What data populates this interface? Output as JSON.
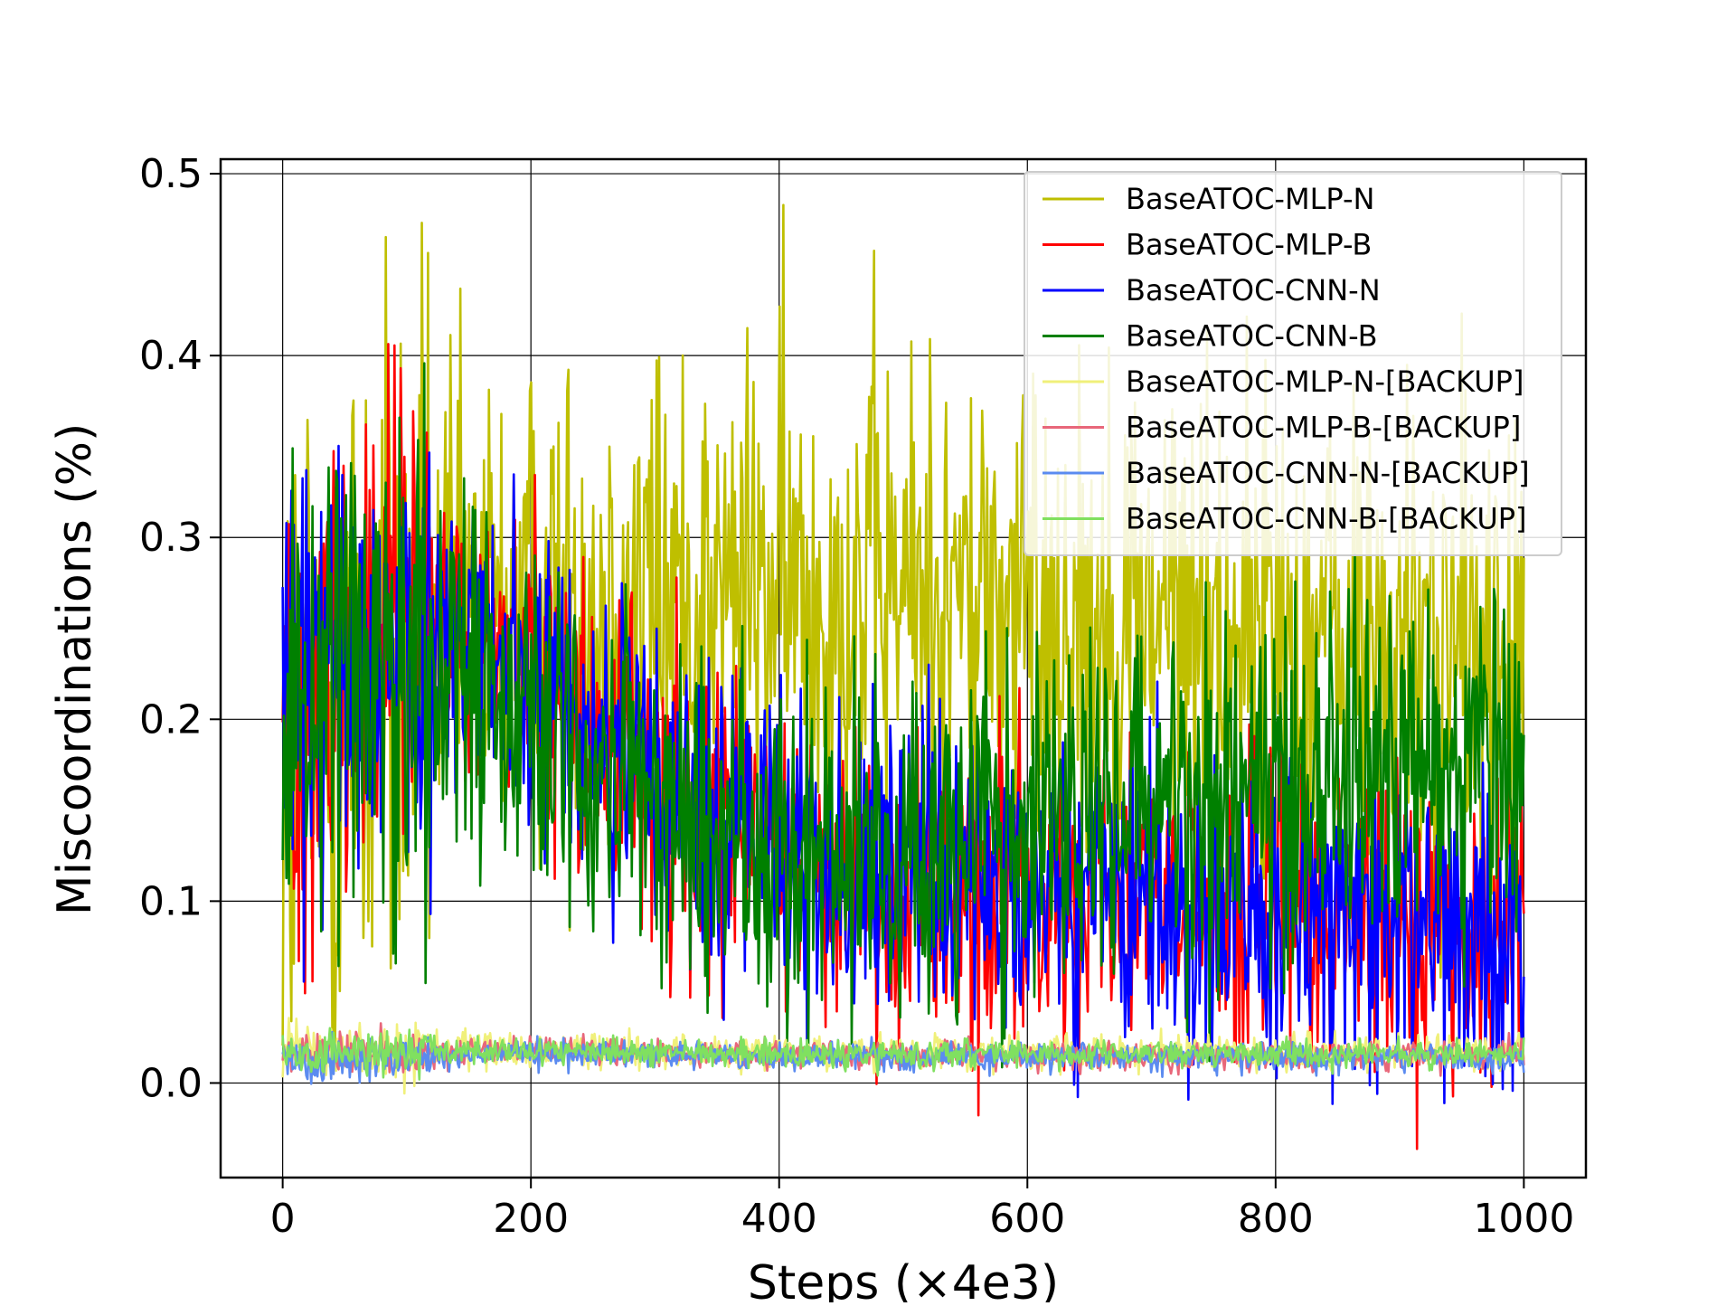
{
  "chart_data": {
    "type": "line",
    "title": "",
    "xlabel": "Steps (×4e3)",
    "ylabel": "Miscoordinations (%)",
    "xlim": [
      -50,
      1050
    ],
    "ylim": [
      -0.052,
      0.508
    ],
    "x_ticks": [
      0,
      200,
      400,
      600,
      800,
      1000
    ],
    "x_tick_labels": [
      "0",
      "200",
      "400",
      "600",
      "800",
      "1000"
    ],
    "y_ticks": [
      0.0,
      0.1,
      0.2,
      0.3,
      0.4,
      0.5
    ],
    "y_tick_labels": [
      "0.0",
      "0.1",
      "0.2",
      "0.3",
      "0.4",
      "0.5"
    ],
    "grid": true,
    "legend_position": "top-right",
    "x_range": [
      0,
      1000
    ],
    "series_note_points": 1000,
    "series": [
      {
        "name": "BaseATOC-MLP-N",
        "color": "#bfbf00",
        "anchors_x": [
          0,
          100,
          200,
          300,
          400,
          500,
          600,
          700,
          800,
          900,
          1000
        ],
        "anchors_y": [
          0.17,
          0.24,
          0.26,
          0.27,
          0.27,
          0.27,
          0.26,
          0.26,
          0.25,
          0.24,
          0.23
        ],
        "noise": 0.07
      },
      {
        "name": "BaseATOC-MLP-B",
        "color": "#ff0000",
        "anchors_x": [
          0,
          100,
          200,
          300,
          400,
          500,
          600,
          700,
          800,
          900,
          1000
        ],
        "anchors_y": [
          0.21,
          0.25,
          0.23,
          0.16,
          0.13,
          0.11,
          0.1,
          0.1,
          0.095,
          0.09,
          0.09
        ],
        "noise": 0.045
      },
      {
        "name": "BaseATOC-CNN-N",
        "color": "#0000ff",
        "anchors_x": [
          0,
          100,
          200,
          300,
          400,
          500,
          600,
          700,
          800,
          900,
          1000
        ],
        "anchors_y": [
          0.2,
          0.25,
          0.22,
          0.16,
          0.13,
          0.115,
          0.105,
          0.1,
          0.095,
          0.09,
          0.09
        ],
        "noise": 0.045
      },
      {
        "name": "BaseATOC-CNN-B",
        "color": "#008000",
        "anchors_x": [
          0,
          100,
          200,
          300,
          400,
          500,
          600,
          700,
          800,
          900,
          1000
        ],
        "anchors_y": [
          0.22,
          0.25,
          0.2,
          0.15,
          0.13,
          0.13,
          0.14,
          0.16,
          0.17,
          0.18,
          0.18
        ],
        "noise": 0.05
      },
      {
        "name": "BaseATOC-MLP-N-[BACKUP]",
        "color": "#f0f07a",
        "anchors_x": [
          0,
          200,
          400,
          600,
          800,
          1000
        ],
        "anchors_y": [
          0.017,
          0.018,
          0.016,
          0.016,
          0.016,
          0.016
        ],
        "noise": 0.005
      },
      {
        "name": "BaseATOC-MLP-B-[BACKUP]",
        "color": "#e8677a",
        "anchors_x": [
          0,
          200,
          400,
          600,
          800,
          1000
        ],
        "anchors_y": [
          0.016,
          0.018,
          0.016,
          0.015,
          0.015,
          0.015
        ],
        "noise": 0.004
      },
      {
        "name": "BaseATOC-CNN-N-[BACKUP]",
        "color": "#5b8bf0",
        "anchors_x": [
          0,
          200,
          400,
          600,
          800,
          1000
        ],
        "anchors_y": [
          0.012,
          0.017,
          0.015,
          0.014,
          0.014,
          0.014
        ],
        "noise": 0.004
      },
      {
        "name": "BaseATOC-CNN-B-[BACKUP]",
        "color": "#80e060",
        "anchors_x": [
          0,
          200,
          400,
          600,
          800,
          1000
        ],
        "anchors_y": [
          0.015,
          0.018,
          0.016,
          0.016,
          0.016,
          0.016
        ],
        "noise": 0.004
      }
    ]
  }
}
